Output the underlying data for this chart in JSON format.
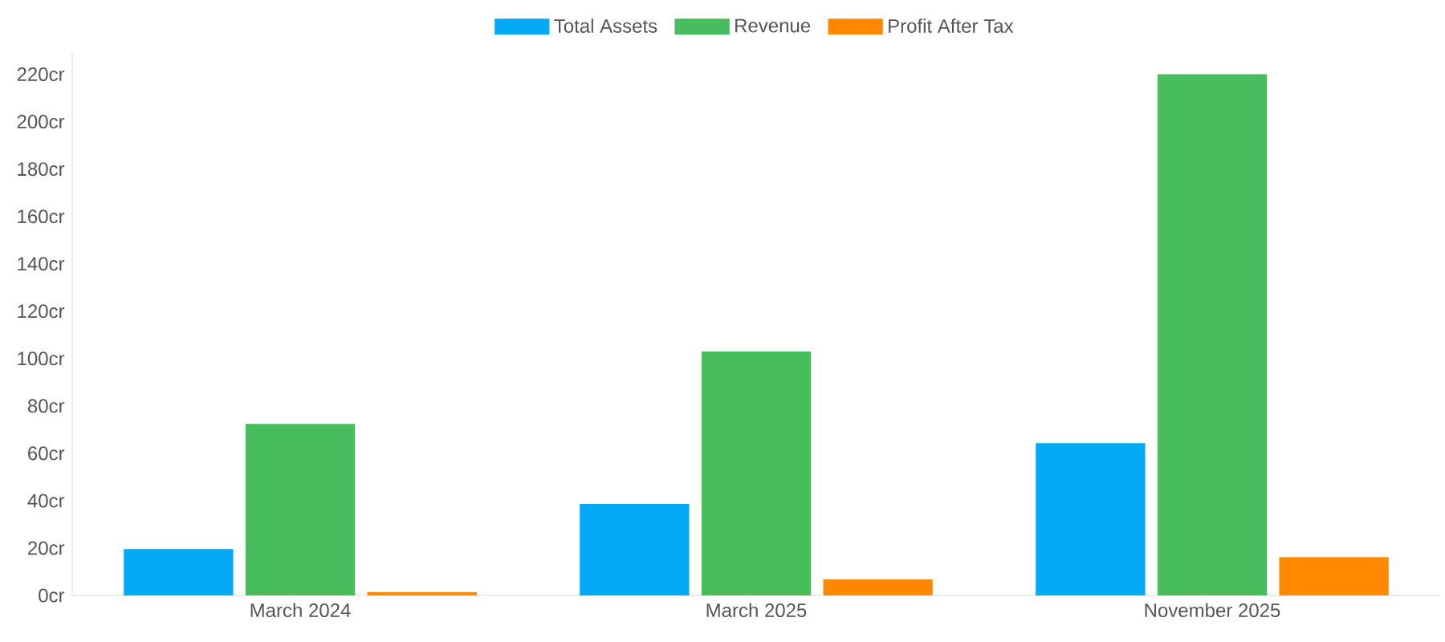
{
  "chart_data": {
    "type": "bar",
    "categories": [
      "March 2024",
      "March 2025",
      "November 2025"
    ],
    "series": [
      {
        "name": "Total Assets",
        "color": "#03a9f4",
        "values": [
          19.6,
          38.6,
          64.3
        ]
      },
      {
        "name": "Revenue",
        "color": "#47bd5d",
        "values": [
          72.4,
          103,
          220
        ]
      },
      {
        "name": "Profit After Tax",
        "color": "#ff8800",
        "values": [
          1.4,
          6.8,
          16.2
        ]
      }
    ],
    "ylim": [
      0,
      229
    ],
    "yticks": [
      {
        "value": 0,
        "label": "0cr"
      },
      {
        "value": 20,
        "label": "20cr"
      },
      {
        "value": 40,
        "label": "40cr"
      },
      {
        "value": 60,
        "label": "60cr"
      },
      {
        "value": 80,
        "label": "80cr"
      },
      {
        "value": 100,
        "label": "100cr"
      },
      {
        "value": 120,
        "label": "120cr"
      },
      {
        "value": 140,
        "label": "140cr"
      },
      {
        "value": 160,
        "label": "160cr"
      },
      {
        "value": 180,
        "label": "180cr"
      },
      {
        "value": 200,
        "label": "200cr"
      },
      {
        "value": 220,
        "label": "220cr"
      }
    ],
    "grid": false,
    "legend": "top"
  }
}
